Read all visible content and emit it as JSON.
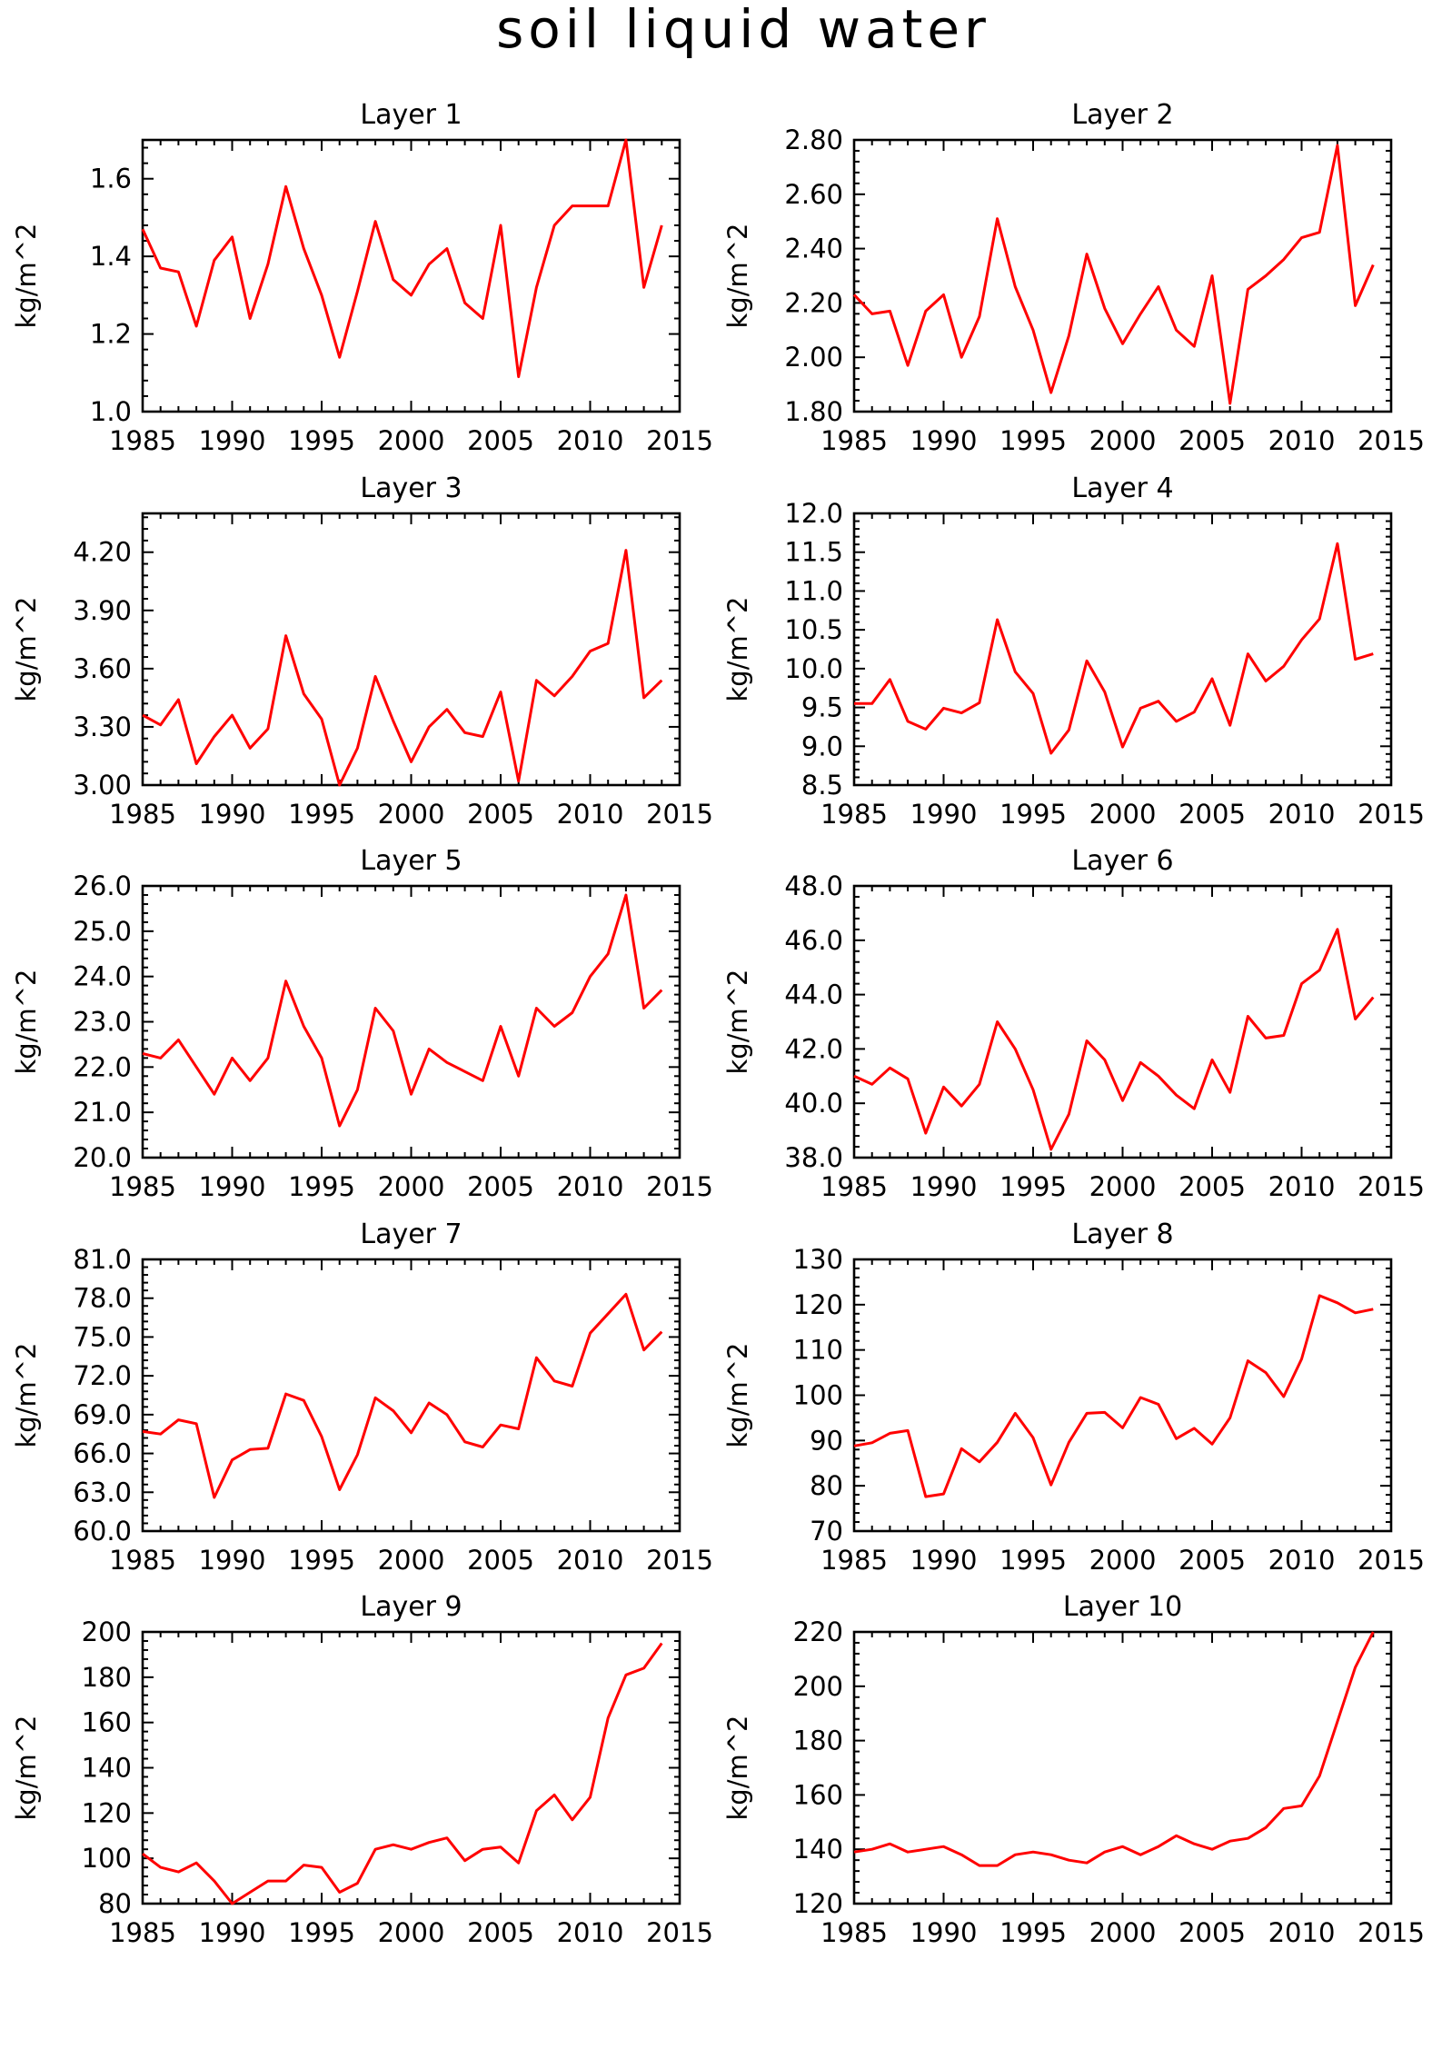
{
  "title": "soil liquid water",
  "footer_text": "",
  "colors": {
    "line": "#ff0000",
    "axis": "#000000",
    "background": "#ffffff"
  },
  "chart_data": [
    {
      "type": "line",
      "title": "Layer 1",
      "ylabel": "kg/m^2",
      "xlim": [
        1985,
        2015
      ],
      "ylim": [
        1.0,
        1.7
      ],
      "xticks": [
        1985,
        1990,
        1995,
        2000,
        2005,
        2010,
        2015
      ],
      "xtick_labels": [
        "1985",
        "1990",
        "1995",
        "2000",
        "2005",
        "2010",
        "2015"
      ],
      "yticks": [
        1.0,
        1.2,
        1.4,
        1.6
      ],
      "ytick_labels": [
        "1.0",
        "1.2",
        "1.4",
        "1.6"
      ],
      "x": [
        1985,
        1986,
        1987,
        1988,
        1989,
        1990,
        1991,
        1992,
        1993,
        1994,
        1995,
        1996,
        1997,
        1998,
        1999,
        2000,
        2001,
        2002,
        2003,
        2004,
        2005,
        2006,
        2007,
        2008,
        2009,
        2010,
        2011,
        2012,
        2013,
        2014
      ],
      "values": [
        1.47,
        1.37,
        1.36,
        1.22,
        1.39,
        1.45,
        1.24,
        1.38,
        1.58,
        1.42,
        1.3,
        1.14,
        1.31,
        1.49,
        1.34,
        1.3,
        1.38,
        1.42,
        1.28,
        1.24,
        1.48,
        1.09,
        1.32,
        1.48,
        1.53,
        1.53,
        1.53,
        1.7,
        1.32,
        1.48
      ]
    },
    {
      "type": "line",
      "title": "Layer 2",
      "ylabel": "kg/m^2",
      "xlim": [
        1985,
        2015
      ],
      "ylim": [
        1.8,
        2.8
      ],
      "xticks": [
        1985,
        1990,
        1995,
        2000,
        2005,
        2010,
        2015
      ],
      "xtick_labels": [
        "1985",
        "1990",
        "1995",
        "2000",
        "2005",
        "2010",
        "2015"
      ],
      "yticks": [
        1.8,
        2.0,
        2.2,
        2.4,
        2.6,
        2.8
      ],
      "ytick_labels": [
        "1.80",
        "2.00",
        "2.20",
        "2.40",
        "2.60",
        "2.80"
      ],
      "x": [
        1985,
        1986,
        1987,
        1988,
        1989,
        1990,
        1991,
        1992,
        1993,
        1994,
        1995,
        1996,
        1997,
        1998,
        1999,
        2000,
        2001,
        2002,
        2003,
        2004,
        2005,
        2006,
        2007,
        2008,
        2009,
        2010,
        2011,
        2012,
        2013,
        2014
      ],
      "values": [
        2.23,
        2.16,
        2.17,
        1.97,
        2.17,
        2.23,
        2.0,
        2.15,
        2.51,
        2.26,
        2.1,
        1.87,
        2.08,
        2.38,
        2.18,
        2.05,
        2.16,
        2.26,
        2.1,
        2.04,
        2.3,
        1.83,
        2.25,
        2.3,
        2.36,
        2.44,
        2.46,
        2.78,
        2.19,
        2.34
      ]
    },
    {
      "type": "line",
      "title": "Layer 3",
      "ylabel": "kg/m^2",
      "xlim": [
        1985,
        2015
      ],
      "ylim": [
        3.0,
        4.4
      ],
      "xticks": [
        1985,
        1990,
        1995,
        2000,
        2005,
        2010,
        2015
      ],
      "xtick_labels": [
        "1985",
        "1990",
        "1995",
        "2000",
        "2005",
        "2010",
        "2015"
      ],
      "yticks": [
        3.0,
        3.3,
        3.6,
        3.9,
        4.2
      ],
      "ytick_labels": [
        "3.00",
        "3.30",
        "3.60",
        "3.90",
        "4.20"
      ],
      "x": [
        1985,
        1986,
        1987,
        1988,
        1989,
        1990,
        1991,
        1992,
        1993,
        1994,
        1995,
        1996,
        1997,
        1998,
        1999,
        2000,
        2001,
        2002,
        2003,
        2004,
        2005,
        2006,
        2007,
        2008,
        2009,
        2010,
        2011,
        2012,
        2013,
        2014
      ],
      "values": [
        3.36,
        3.31,
        3.44,
        3.11,
        3.25,
        3.36,
        3.19,
        3.29,
        3.77,
        3.47,
        3.34,
        3.0,
        3.19,
        3.56,
        3.33,
        3.12,
        3.3,
        3.39,
        3.27,
        3.25,
        3.48,
        3.02,
        3.54,
        3.46,
        3.56,
        3.69,
        3.73,
        4.21,
        3.45,
        3.54
      ]
    },
    {
      "type": "line",
      "title": "Layer 4",
      "ylabel": "kg/m^2",
      "xlim": [
        1985,
        2015
      ],
      "ylim": [
        8.5,
        12.0
      ],
      "xticks": [
        1985,
        1990,
        1995,
        2000,
        2005,
        2010,
        2015
      ],
      "xtick_labels": [
        "1985",
        "1990",
        "1995",
        "2000",
        "2005",
        "2010",
        "2015"
      ],
      "yticks": [
        8.5,
        9.0,
        9.5,
        10.0,
        10.5,
        11.0,
        11.5,
        12.0
      ],
      "ytick_labels": [
        "8.5",
        "9.0",
        "9.5",
        "10.0",
        "10.5",
        "11.0",
        "11.5",
        "12.0"
      ],
      "x": [
        1985,
        1986,
        1987,
        1988,
        1989,
        1990,
        1991,
        1992,
        1993,
        1994,
        1995,
        1996,
        1997,
        1998,
        1999,
        2000,
        2001,
        2002,
        2003,
        2004,
        2005,
        2006,
        2007,
        2008,
        2009,
        2010,
        2011,
        2012,
        2013,
        2014
      ],
      "values": [
        9.55,
        9.55,
        9.86,
        9.32,
        9.22,
        9.49,
        9.43,
        9.56,
        10.63,
        9.96,
        9.68,
        8.91,
        9.21,
        10.1,
        9.7,
        8.99,
        9.49,
        9.58,
        9.32,
        9.44,
        9.87,
        9.27,
        10.19,
        9.84,
        10.03,
        10.37,
        10.64,
        11.61,
        10.12,
        10.19
      ]
    },
    {
      "type": "line",
      "title": "Layer 5",
      "ylabel": "kg/m^2",
      "xlim": [
        1985,
        2015
      ],
      "ylim": [
        20.0,
        26.0
      ],
      "xticks": [
        1985,
        1990,
        1995,
        2000,
        2005,
        2010,
        2015
      ],
      "xtick_labels": [
        "1985",
        "1990",
        "1995",
        "2000",
        "2005",
        "2010",
        "2015"
      ],
      "yticks": [
        20,
        21,
        22,
        23,
        24,
        25,
        26
      ],
      "ytick_labels": [
        "20.0",
        "21.0",
        "22.0",
        "23.0",
        "24.0",
        "25.0",
        "26.0"
      ],
      "x": [
        1985,
        1986,
        1987,
        1988,
        1989,
        1990,
        1991,
        1992,
        1993,
        1994,
        1995,
        1996,
        1997,
        1998,
        1999,
        2000,
        2001,
        2002,
        2003,
        2004,
        2005,
        2006,
        2007,
        2008,
        2009,
        2010,
        2011,
        2012,
        2013,
        2014
      ],
      "values": [
        22.3,
        22.2,
        22.6,
        22.0,
        21.4,
        22.2,
        21.7,
        22.2,
        23.9,
        22.9,
        22.2,
        20.7,
        21.5,
        23.3,
        22.8,
        21.4,
        22.4,
        22.1,
        21.9,
        21.7,
        22.9,
        21.8,
        23.3,
        22.9,
        23.2,
        24.0,
        24.5,
        25.8,
        23.3,
        23.7
      ]
    },
    {
      "type": "line",
      "title": "Layer 6",
      "ylabel": "kg/m^2",
      "xlim": [
        1985,
        2015
      ],
      "ylim": [
        38.0,
        48.0
      ],
      "xticks": [
        1985,
        1990,
        1995,
        2000,
        2005,
        2010,
        2015
      ],
      "xtick_labels": [
        "1985",
        "1990",
        "1995",
        "2000",
        "2005",
        "2010",
        "2015"
      ],
      "yticks": [
        38,
        40,
        42,
        44,
        46,
        48
      ],
      "ytick_labels": [
        "38.0",
        "40.0",
        "42.0",
        "44.0",
        "46.0",
        "48.0"
      ],
      "x": [
        1985,
        1986,
        1987,
        1988,
        1989,
        1990,
        1991,
        1992,
        1993,
        1994,
        1995,
        1996,
        1997,
        1998,
        1999,
        2000,
        2001,
        2002,
        2003,
        2004,
        2005,
        2006,
        2007,
        2008,
        2009,
        2010,
        2011,
        2012,
        2013,
        2014
      ],
      "values": [
        41.0,
        40.7,
        41.3,
        40.9,
        38.9,
        40.6,
        39.9,
        40.7,
        43.0,
        42.0,
        40.5,
        38.3,
        39.6,
        42.3,
        41.6,
        40.1,
        41.5,
        41.0,
        40.3,
        39.8,
        41.6,
        40.4,
        43.2,
        42.4,
        42.5,
        44.4,
        44.9,
        46.4,
        43.1,
        43.9
      ]
    },
    {
      "type": "line",
      "title": "Layer 7",
      "ylabel": "kg/m^2",
      "xlim": [
        1985,
        2015
      ],
      "ylim": [
        60.0,
        81.0
      ],
      "xticks": [
        1985,
        1990,
        1995,
        2000,
        2005,
        2010,
        2015
      ],
      "xtick_labels": [
        "1985",
        "1990",
        "1995",
        "2000",
        "2005",
        "2010",
        "2015"
      ],
      "yticks": [
        60,
        63,
        66,
        69,
        72,
        75,
        78,
        81
      ],
      "ytick_labels": [
        "60.0",
        "63.0",
        "66.0",
        "69.0",
        "72.0",
        "75.0",
        "78.0",
        "81.0"
      ],
      "x": [
        1985,
        1986,
        1987,
        1988,
        1989,
        1990,
        1991,
        1992,
        1993,
        1994,
        1995,
        1996,
        1997,
        1998,
        1999,
        2000,
        2001,
        2002,
        2003,
        2004,
        2005,
        2006,
        2007,
        2008,
        2009,
        2010,
        2011,
        2012,
        2013,
        2014
      ],
      "values": [
        67.7,
        67.5,
        68.6,
        68.3,
        62.6,
        65.5,
        66.3,
        66.4,
        70.6,
        70.1,
        67.3,
        63.2,
        65.9,
        70.3,
        69.3,
        67.6,
        69.9,
        69.0,
        66.9,
        66.5,
        68.2,
        67.9,
        73.4,
        71.6,
        71.2,
        75.3,
        76.8,
        78.3,
        74.0,
        75.4
      ]
    },
    {
      "type": "line",
      "title": "Layer 8",
      "ylabel": "kg/m^2",
      "xlim": [
        1985,
        2015
      ],
      "ylim": [
        70,
        130
      ],
      "xticks": [
        1985,
        1990,
        1995,
        2000,
        2005,
        2010,
        2015
      ],
      "xtick_labels": [
        "1985",
        "1990",
        "1995",
        "2000",
        "2005",
        "2010",
        "2015"
      ],
      "yticks": [
        70,
        80,
        90,
        100,
        110,
        120,
        130
      ],
      "ytick_labels": [
        "70",
        "80",
        "90",
        "100",
        "110",
        "120",
        "130"
      ],
      "x": [
        1985,
        1986,
        1987,
        1988,
        1989,
        1990,
        1991,
        1992,
        1993,
        1994,
        1995,
        1996,
        1997,
        1998,
        1999,
        2000,
        2001,
        2002,
        2003,
        2004,
        2005,
        2006,
        2007,
        2008,
        2009,
        2010,
        2011,
        2012,
        2013,
        2014
      ],
      "values": [
        88.8,
        89.5,
        91.6,
        92.2,
        77.6,
        78.2,
        88.2,
        85.3,
        89.6,
        96.0,
        90.6,
        80.2,
        89.6,
        96.0,
        96.2,
        92.8,
        99.5,
        98.0,
        90.4,
        92.7,
        89.2,
        95.0,
        107.6,
        105.0,
        99.7,
        108.0,
        122.0,
        120.4,
        118.2,
        119.0
      ]
    },
    {
      "type": "line",
      "title": "Layer 9",
      "ylabel": "kg/m^2",
      "xlim": [
        1985,
        2015
      ],
      "ylim": [
        80,
        200
      ],
      "xticks": [
        1985,
        1990,
        1995,
        2000,
        2005,
        2010,
        2015
      ],
      "xtick_labels": [
        "1985",
        "1990",
        "1995",
        "2000",
        "2005",
        "2010",
        "2015"
      ],
      "yticks": [
        80,
        100,
        120,
        140,
        160,
        180,
        200
      ],
      "ytick_labels": [
        "80",
        "100",
        "120",
        "140",
        "160",
        "180",
        "200"
      ],
      "x": [
        1985,
        1986,
        1987,
        1988,
        1989,
        1990,
        1991,
        1992,
        1993,
        1994,
        1995,
        1996,
        1997,
        1998,
        1999,
        2000,
        2001,
        2002,
        2003,
        2004,
        2005,
        2006,
        2007,
        2008,
        2009,
        2010,
        2011,
        2012,
        2013,
        2014
      ],
      "values": [
        102,
        96,
        94,
        98,
        90,
        80,
        85,
        90,
        90,
        97,
        96,
        85,
        89,
        104,
        106,
        104,
        107,
        109,
        99,
        104,
        105,
        98,
        121,
        128,
        117,
        127,
        162,
        181,
        184,
        195
      ]
    },
    {
      "type": "line",
      "title": "Layer 10",
      "ylabel": "kg/m^2",
      "xlim": [
        1985,
        2015
      ],
      "ylim": [
        120,
        220
      ],
      "xticks": [
        1985,
        1990,
        1995,
        2000,
        2005,
        2010,
        2015
      ],
      "xtick_labels": [
        "1985",
        "1990",
        "1995",
        "2000",
        "2005",
        "2010",
        "2015"
      ],
      "yticks": [
        120,
        140,
        160,
        180,
        200,
        220
      ],
      "ytick_labels": [
        "120",
        "140",
        "160",
        "180",
        "200",
        "220"
      ],
      "x": [
        1985,
        1986,
        1987,
        1988,
        1989,
        1990,
        1991,
        1992,
        1993,
        1994,
        1995,
        1996,
        1997,
        1998,
        1999,
        2000,
        2001,
        2002,
        2003,
        2004,
        2005,
        2006,
        2007,
        2008,
        2009,
        2010,
        2011,
        2012,
        2013,
        2014
      ],
      "values": [
        139,
        140,
        142,
        139,
        140,
        141,
        138,
        134,
        134,
        138,
        139,
        138,
        136,
        135,
        139,
        141,
        138,
        141,
        145,
        142,
        140,
        143,
        144,
        148,
        155,
        156,
        167,
        187,
        207,
        220
      ]
    }
  ]
}
